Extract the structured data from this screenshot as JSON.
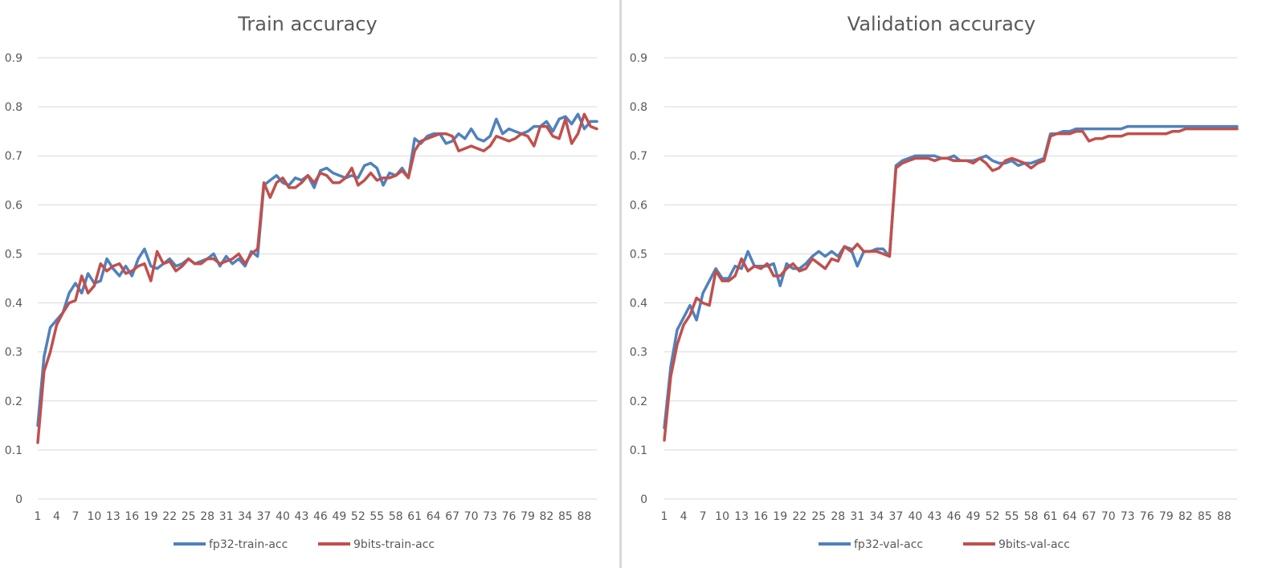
{
  "chart_data": [
    {
      "type": "line",
      "title": "Train accuracy",
      "xlabel": "",
      "ylabel": "",
      "ylim": [
        0,
        0.9
      ],
      "y_ticks": [
        "0",
        "0.1",
        "0.2",
        "0.3",
        "0.4",
        "0.5",
        "0.6",
        "0.7",
        "0.8",
        "0.9"
      ],
      "x_ticks": [
        1,
        4,
        7,
        10,
        13,
        16,
        19,
        22,
        25,
        28,
        31,
        34,
        37,
        40,
        43,
        46,
        49,
        52,
        55,
        58,
        61,
        64,
        67,
        70,
        73,
        76,
        79,
        82,
        85,
        88
      ],
      "x_range": [
        1,
        90
      ],
      "grid": "horizontal",
      "legend": "bottom",
      "series": [
        {
          "name": "fp32-train-acc",
          "color": "#4f81bd",
          "values": [
            0.15,
            0.29,
            0.35,
            0.365,
            0.38,
            0.42,
            0.44,
            0.42,
            0.46,
            0.44,
            0.445,
            0.49,
            0.47,
            0.455,
            0.475,
            0.455,
            0.49,
            0.51,
            0.475,
            0.47,
            0.48,
            0.49,
            0.475,
            0.48,
            0.49,
            0.48,
            0.485,
            0.49,
            0.5,
            0.475,
            0.495,
            0.48,
            0.49,
            0.475,
            0.505,
            0.495,
            0.64,
            0.65,
            0.66,
            0.645,
            0.64,
            0.655,
            0.65,
            0.66,
            0.635,
            0.67,
            0.675,
            0.665,
            0.66,
            0.655,
            0.66,
            0.655,
            0.68,
            0.685,
            0.675,
            0.64,
            0.665,
            0.66,
            0.675,
            0.655,
            0.735,
            0.725,
            0.74,
            0.745,
            0.745,
            0.725,
            0.73,
            0.745,
            0.735,
            0.755,
            0.735,
            0.73,
            0.74,
            0.775,
            0.745,
            0.755,
            0.75,
            0.745,
            0.75,
            0.76,
            0.76,
            0.77,
            0.75,
            0.775,
            0.78,
            0.765,
            0.785,
            0.755,
            0.77,
            0.77
          ]
        },
        {
          "name": "9bits-train-acc",
          "color": "#c0504d",
          "values": [
            0.115,
            0.26,
            0.3,
            0.355,
            0.38,
            0.4,
            0.405,
            0.455,
            0.42,
            0.435,
            0.48,
            0.465,
            0.475,
            0.48,
            0.46,
            0.465,
            0.475,
            0.48,
            0.445,
            0.505,
            0.48,
            0.485,
            0.465,
            0.475,
            0.49,
            0.48,
            0.48,
            0.49,
            0.49,
            0.48,
            0.485,
            0.49,
            0.5,
            0.48,
            0.5,
            0.51,
            0.645,
            0.615,
            0.645,
            0.655,
            0.635,
            0.635,
            0.645,
            0.66,
            0.645,
            0.665,
            0.66,
            0.645,
            0.645,
            0.655,
            0.675,
            0.64,
            0.65,
            0.665,
            0.65,
            0.655,
            0.655,
            0.66,
            0.67,
            0.655,
            0.71,
            0.73,
            0.735,
            0.74,
            0.745,
            0.745,
            0.74,
            0.71,
            0.715,
            0.72,
            0.715,
            0.71,
            0.72,
            0.74,
            0.735,
            0.73,
            0.735,
            0.745,
            0.74,
            0.72,
            0.76,
            0.76,
            0.74,
            0.735,
            0.775,
            0.725,
            0.745,
            0.785,
            0.76,
            0.755
          ]
        }
      ]
    },
    {
      "type": "line",
      "title": "Validation accuracy",
      "xlabel": "",
      "ylabel": "",
      "ylim": [
        0,
        0.9
      ],
      "y_ticks": [
        "0",
        "0.1",
        "0.2",
        "0.3",
        "0.4",
        "0.5",
        "0.6",
        "0.7",
        "0.8",
        "0.9"
      ],
      "x_ticks": [
        1,
        4,
        7,
        10,
        13,
        16,
        19,
        22,
        25,
        28,
        31,
        34,
        37,
        40,
        43,
        46,
        49,
        52,
        55,
        58,
        61,
        64,
        67,
        70,
        73,
        76,
        79,
        82,
        85,
        88
      ],
      "x_range": [
        1,
        90
      ],
      "grid": "horizontal",
      "legend": "bottom",
      "series": [
        {
          "name": "fp32-val-acc",
          "color": "#4f81bd",
          "values": [
            0.145,
            0.27,
            0.345,
            0.37,
            0.395,
            0.365,
            0.42,
            0.445,
            0.47,
            0.45,
            0.45,
            0.475,
            0.47,
            0.505,
            0.475,
            0.475,
            0.475,
            0.48,
            0.435,
            0.48,
            0.47,
            0.47,
            0.48,
            0.495,
            0.505,
            0.495,
            0.505,
            0.495,
            0.515,
            0.51,
            0.475,
            0.505,
            0.505,
            0.51,
            0.51,
            0.495,
            0.68,
            0.69,
            0.695,
            0.7,
            0.7,
            0.7,
            0.7,
            0.695,
            0.695,
            0.7,
            0.69,
            0.69,
            0.69,
            0.695,
            0.7,
            0.69,
            0.685,
            0.685,
            0.69,
            0.68,
            0.685,
            0.685,
            0.69,
            0.695,
            0.745,
            0.745,
            0.75,
            0.75,
            0.755,
            0.755,
            0.755,
            0.755,
            0.755,
            0.755,
            0.755,
            0.755,
            0.76,
            0.76,
            0.76,
            0.76,
            0.76,
            0.76,
            0.76,
            0.76,
            0.76,
            0.76,
            0.76,
            0.76,
            0.76,
            0.76,
            0.76,
            0.76,
            0.76,
            0.76
          ]
        },
        {
          "name": "9bits-val-acc",
          "color": "#c0504d",
          "values": [
            0.12,
            0.25,
            0.315,
            0.355,
            0.375,
            0.41,
            0.4,
            0.395,
            0.465,
            0.445,
            0.445,
            0.455,
            0.49,
            0.465,
            0.475,
            0.47,
            0.48,
            0.455,
            0.455,
            0.47,
            0.48,
            0.465,
            0.47,
            0.49,
            0.48,
            0.47,
            0.49,
            0.485,
            0.515,
            0.505,
            0.52,
            0.505,
            0.505,
            0.505,
            0.5,
            0.495,
            0.675,
            0.685,
            0.69,
            0.695,
            0.695,
            0.695,
            0.69,
            0.695,
            0.695,
            0.69,
            0.69,
            0.69,
            0.685,
            0.695,
            0.685,
            0.67,
            0.675,
            0.69,
            0.695,
            0.69,
            0.685,
            0.675,
            0.685,
            0.69,
            0.74,
            0.745,
            0.745,
            0.745,
            0.75,
            0.75,
            0.73,
            0.735,
            0.735,
            0.74,
            0.74,
            0.74,
            0.745,
            0.745,
            0.745,
            0.745,
            0.745,
            0.745,
            0.745,
            0.75,
            0.75,
            0.755,
            0.755,
            0.755,
            0.755,
            0.755,
            0.755,
            0.755,
            0.755,
            0.755
          ]
        }
      ]
    }
  ]
}
